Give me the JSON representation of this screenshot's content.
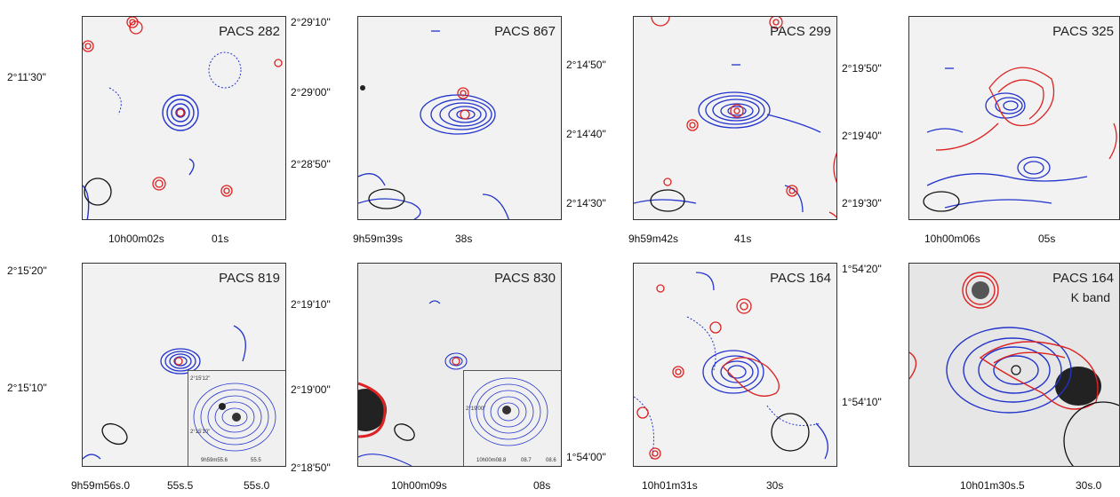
{
  "panels": [
    {
      "id": "p1",
      "title": "PACS 282",
      "subtitle": "",
      "y_labels": [
        "2°11'30\""
      ],
      "x_labels": [
        "10h00m02s",
        "01s"
      ]
    },
    {
      "id": "p2",
      "title": "PACS 867",
      "subtitle": "",
      "y_labels": [
        "2°29'10\"",
        "2°29'00\"",
        "2°28'50\""
      ],
      "x_labels": [
        "9h59m39s",
        "38s"
      ]
    },
    {
      "id": "p3",
      "title": "PACS 299",
      "subtitle": "",
      "y_labels": [
        "2°14'50\"",
        "2°14'40\"",
        "2°14'30\""
      ],
      "x_labels": [
        "9h59m42s",
        "41s"
      ]
    },
    {
      "id": "p4",
      "title": "PACS 325",
      "subtitle": "",
      "y_labels": [
        "2°19'50\"",
        "2°19'40\"",
        "2°19'30\""
      ],
      "x_labels": [
        "10h00m06s",
        "05s"
      ]
    },
    {
      "id": "p5",
      "title": "PACS 819",
      "subtitle": "",
      "y_labels": [
        "2°15'20\"",
        "2°15'10\""
      ],
      "x_labels": [
        "9h59m56s.0",
        "55s.5",
        "55s.0"
      ],
      "inset": {
        "y_labels": [
          "2°15'12\"",
          "2°15'10\""
        ],
        "x_labels": [
          "9h59m55.6",
          "55.5"
        ]
      }
    },
    {
      "id": "p6",
      "title": "PACS 830",
      "subtitle": "",
      "y_labels": [
        "2°19'10\"",
        "2°19'00\"",
        "2°18'50\""
      ],
      "x_labels": [
        "10h00m09s",
        "08s"
      ],
      "inset": {
        "y_labels": [
          "2°19'00\""
        ],
        "x_labels": [
          "10h00m08.8",
          "08.7",
          "08.6"
        ]
      }
    },
    {
      "id": "p7",
      "title": "PACS 164",
      "subtitle": "",
      "y_labels": [
        "1°54'20\"",
        "1°54'10\"",
        "1°54'00\""
      ],
      "x_labels": [
        "10h01m31s",
        "30s"
      ]
    },
    {
      "id": "p8",
      "title": "PACS 164",
      "subtitle": "K band",
      "y_labels": [],
      "x_labels": [
        "10h01m30s.5",
        "30s.0"
      ]
    }
  ],
  "colors": {
    "blue": "#2233cc",
    "red": "#dd2222",
    "bg": "#f2f2f2"
  }
}
